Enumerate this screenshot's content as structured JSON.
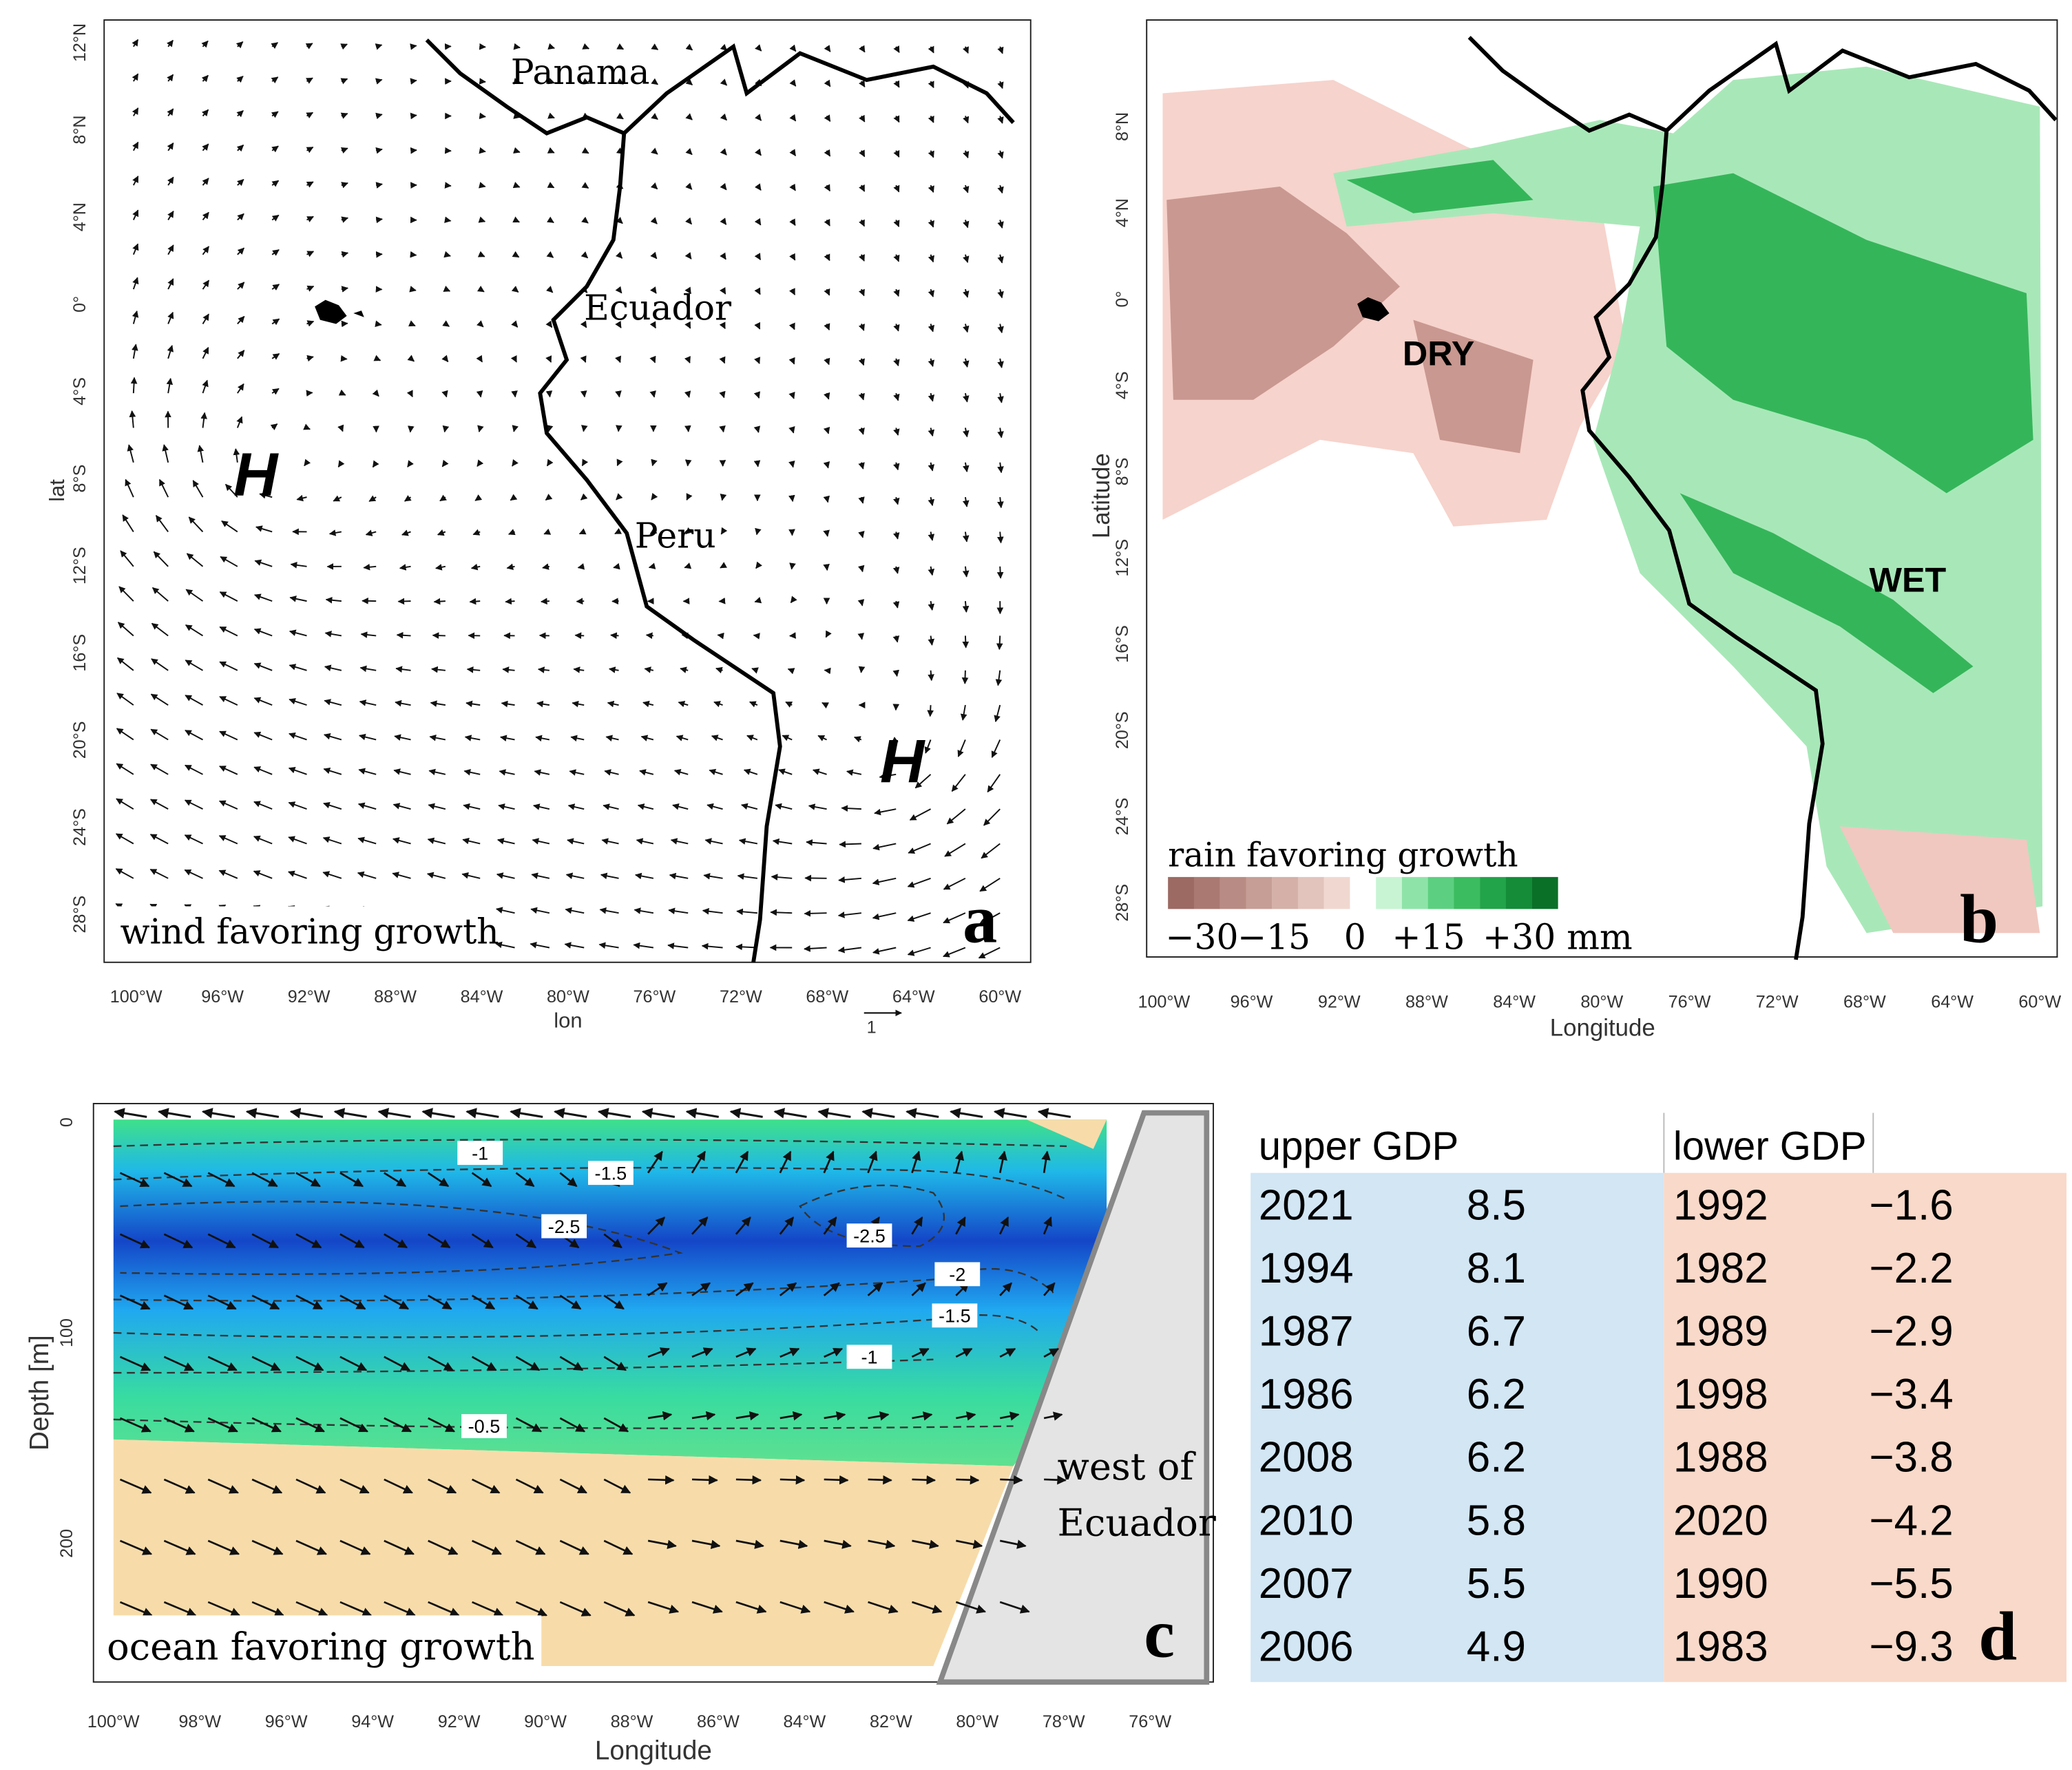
{
  "panel_a": {
    "label": "a",
    "caption": "wind favoring growth",
    "x_axis_label": "lon",
    "y_axis_label": "lat",
    "lat_ticks": [
      "12°N",
      "8°N",
      "4°N",
      "0°",
      "4°S",
      "8°S",
      "12°S",
      "16°S",
      "20°S",
      "24°S",
      "28°S"
    ],
    "lon_ticks": [
      "100°W",
      "96°W",
      "92°W",
      "88°W",
      "84°W",
      "80°W",
      "76°W",
      "72°W",
      "68°W",
      "64°W",
      "60°W"
    ],
    "places": [
      "Panama",
      "Ecuador",
      "Peru"
    ],
    "highs": [
      "H",
      "H"
    ],
    "reference_vector": "1"
  },
  "panel_b": {
    "label": "b",
    "x_axis_label": "Longitude",
    "y_axis_label": "Latitude",
    "lat_ticks": [
      "8°N",
      "4°N",
      "0°",
      "4°S",
      "8°S",
      "12°S",
      "16°S",
      "20°S",
      "24°S",
      "28°S"
    ],
    "lon_ticks": [
      "100°W",
      "96°W",
      "92°W",
      "88°W",
      "84°W",
      "80°W",
      "76°W",
      "72°W",
      "68°W",
      "64°W",
      "60°W"
    ],
    "regions": [
      "DRY",
      "WET"
    ],
    "colorbar_title": "rain favoring growth",
    "colorbar_labels": [
      "−30",
      "−15",
      "0",
      "+15",
      "+30 mm"
    ]
  },
  "panel_c": {
    "label": "c",
    "caption": "ocean favoring growth",
    "x_axis_label": "Longitude",
    "y_axis_label": "Depth [m]",
    "depth_ticks": [
      "0",
      "100",
      "200"
    ],
    "lon_ticks": [
      "100°W",
      "98°W",
      "96°W",
      "94°W",
      "92°W",
      "90°W",
      "88°W",
      "86°W",
      "84°W",
      "82°W",
      "80°W",
      "78°W",
      "76°W"
    ],
    "contour_labels": [
      "-1",
      "-1.5",
      "-2.5",
      "-2.5",
      "-2",
      "-1.5",
      "-1",
      "-0.5"
    ],
    "region_label": [
      "west of",
      "Ecuador"
    ]
  },
  "panel_d": {
    "label": "d",
    "headers": [
      "upper GDP",
      "lower GDP"
    ],
    "upper": [
      [
        "2021",
        "8.5"
      ],
      [
        "1994",
        "8.1"
      ],
      [
        "1987",
        "6.7"
      ],
      [
        "1986",
        "6.2"
      ],
      [
        "2008",
        "6.2"
      ],
      [
        "2010",
        "5.8"
      ],
      [
        "2007",
        "5.5"
      ],
      [
        "2006",
        "4.9"
      ]
    ],
    "lower": [
      [
        "1992",
        "−1.6"
      ],
      [
        "1982",
        "−2.2"
      ],
      [
        "1989",
        "−2.9"
      ],
      [
        "1998",
        "−3.4"
      ],
      [
        "1988",
        "−3.8"
      ],
      [
        "2020",
        "−4.2"
      ],
      [
        "1990",
        "−5.5"
      ],
      [
        "1983",
        "−9.3"
      ]
    ]
  }
}
